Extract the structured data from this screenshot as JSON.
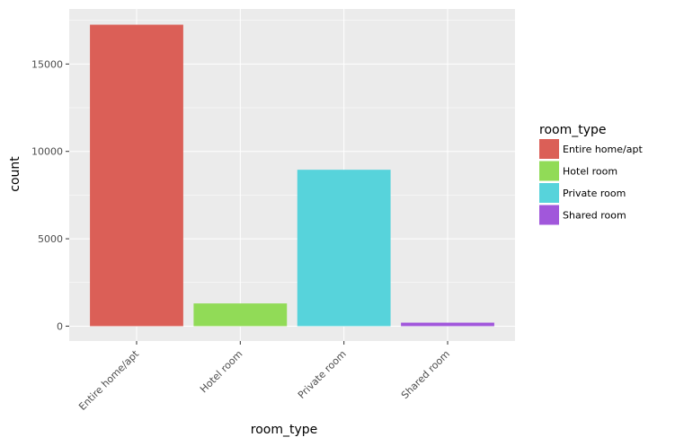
{
  "chart_data": {
    "type": "bar",
    "title": "",
    "xlabel": "room_type",
    "ylabel": "count",
    "categories": [
      "Entire home/apt",
      "Hotel room",
      "Private room",
      "Shared room"
    ],
    "values": [
      17250,
      1300,
      8950,
      200
    ],
    "colors": [
      "#db5f57",
      "#91db57",
      "#57d3db",
      "#a157db"
    ],
    "ylim": [
      -850,
      18150
    ],
    "yticks": [
      0,
      5000,
      10000,
      15000
    ],
    "ytick_labels": [
      "0",
      "5000",
      "10000",
      "15000"
    ],
    "grid": true,
    "background": "#ebebeb",
    "legend": {
      "title": "room_type",
      "placement": "right",
      "entries": [
        "Entire home/apt",
        "Hotel room",
        "Private room",
        "Shared room"
      ]
    }
  }
}
